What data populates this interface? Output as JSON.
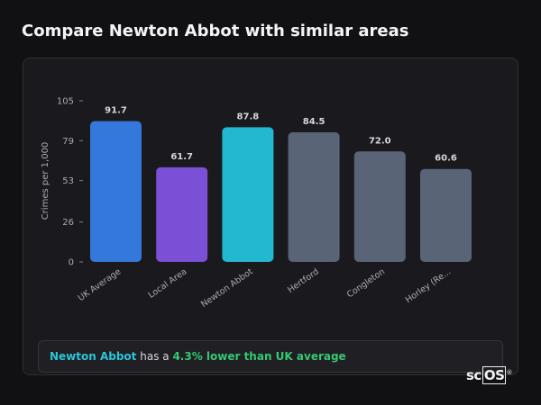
{
  "header": {
    "title": "Compare Newton Abbot with similar areas"
  },
  "chart_data": {
    "type": "bar",
    "title": "",
    "xlabel": "",
    "ylabel": "Crimes per 1,000",
    "ylim": [
      0,
      105
    ],
    "yticks": [
      "0",
      "26",
      "53",
      "79",
      "105"
    ],
    "categories": [
      "UK Average",
      "Local Area",
      "Newton Abbot",
      "Hertford",
      "Congleton",
      "Horley (Re..."
    ],
    "values": [
      91.7,
      61.7,
      87.8,
      84.5,
      72.0,
      60.6
    ],
    "value_labels": [
      "91.7",
      "61.7",
      "87.8",
      "84.5",
      "72.0",
      "60.6"
    ],
    "colors": [
      "#3478dc",
      "#7b4fd6",
      "#22b8cf",
      "#5a6477",
      "#5a6477",
      "#5a6477"
    ],
    "grid": false,
    "legend": "none"
  },
  "summary": {
    "place": "Newton Abbot",
    "middle": " has a ",
    "delta": "4.3% lower than UK average"
  },
  "logo": {
    "text": "sc",
    "boxed": "OS",
    "mark": "®"
  }
}
